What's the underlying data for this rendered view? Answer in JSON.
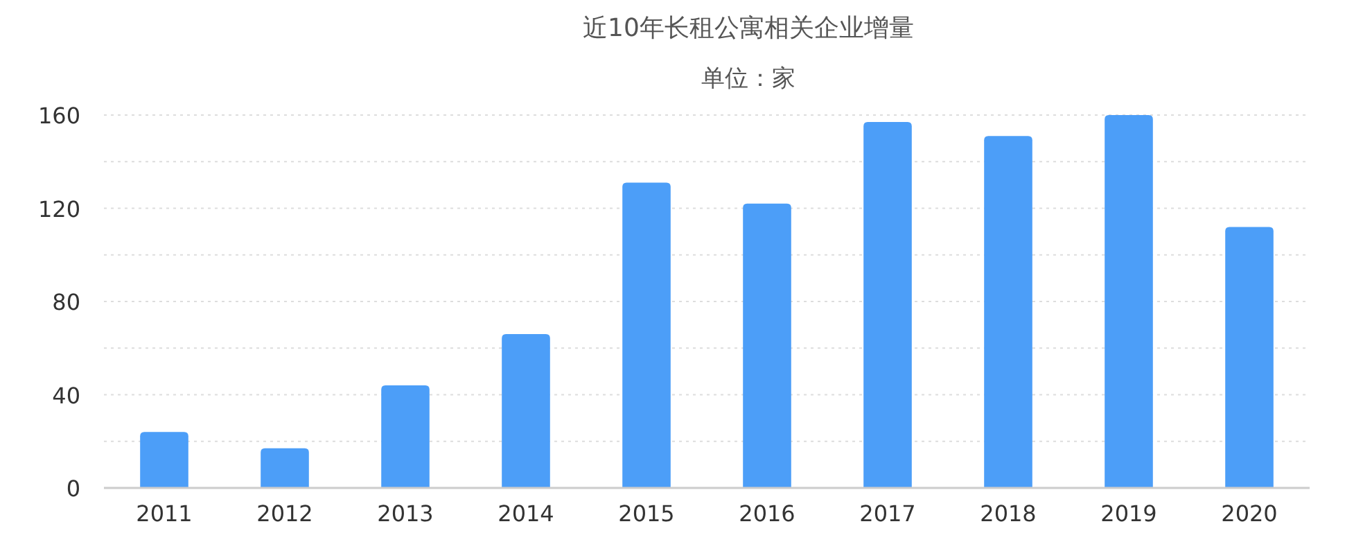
{
  "chart_data": {
    "type": "bar",
    "title": "近10年长租公寓相关企业增量",
    "subtitle": "单位：家",
    "categories": [
      "2011",
      "2012",
      "2013",
      "2014",
      "2015",
      "2016",
      "2017",
      "2018",
      "2019",
      "2020"
    ],
    "values": [
      24,
      17,
      44,
      66,
      131,
      122,
      157,
      151,
      160,
      112
    ],
    "color": "#4c9ef8",
    "ylim": [
      0,
      160
    ],
    "yticks": [
      0,
      {
        "value": 20,
        "label": null
      },
      40,
      {
        "value": 60,
        "label": null
      },
      80,
      {
        "value": 100,
        "label": null
      },
      120,
      {
        "value": 140,
        "label": null
      },
      160
    ],
    "grid": "y"
  }
}
